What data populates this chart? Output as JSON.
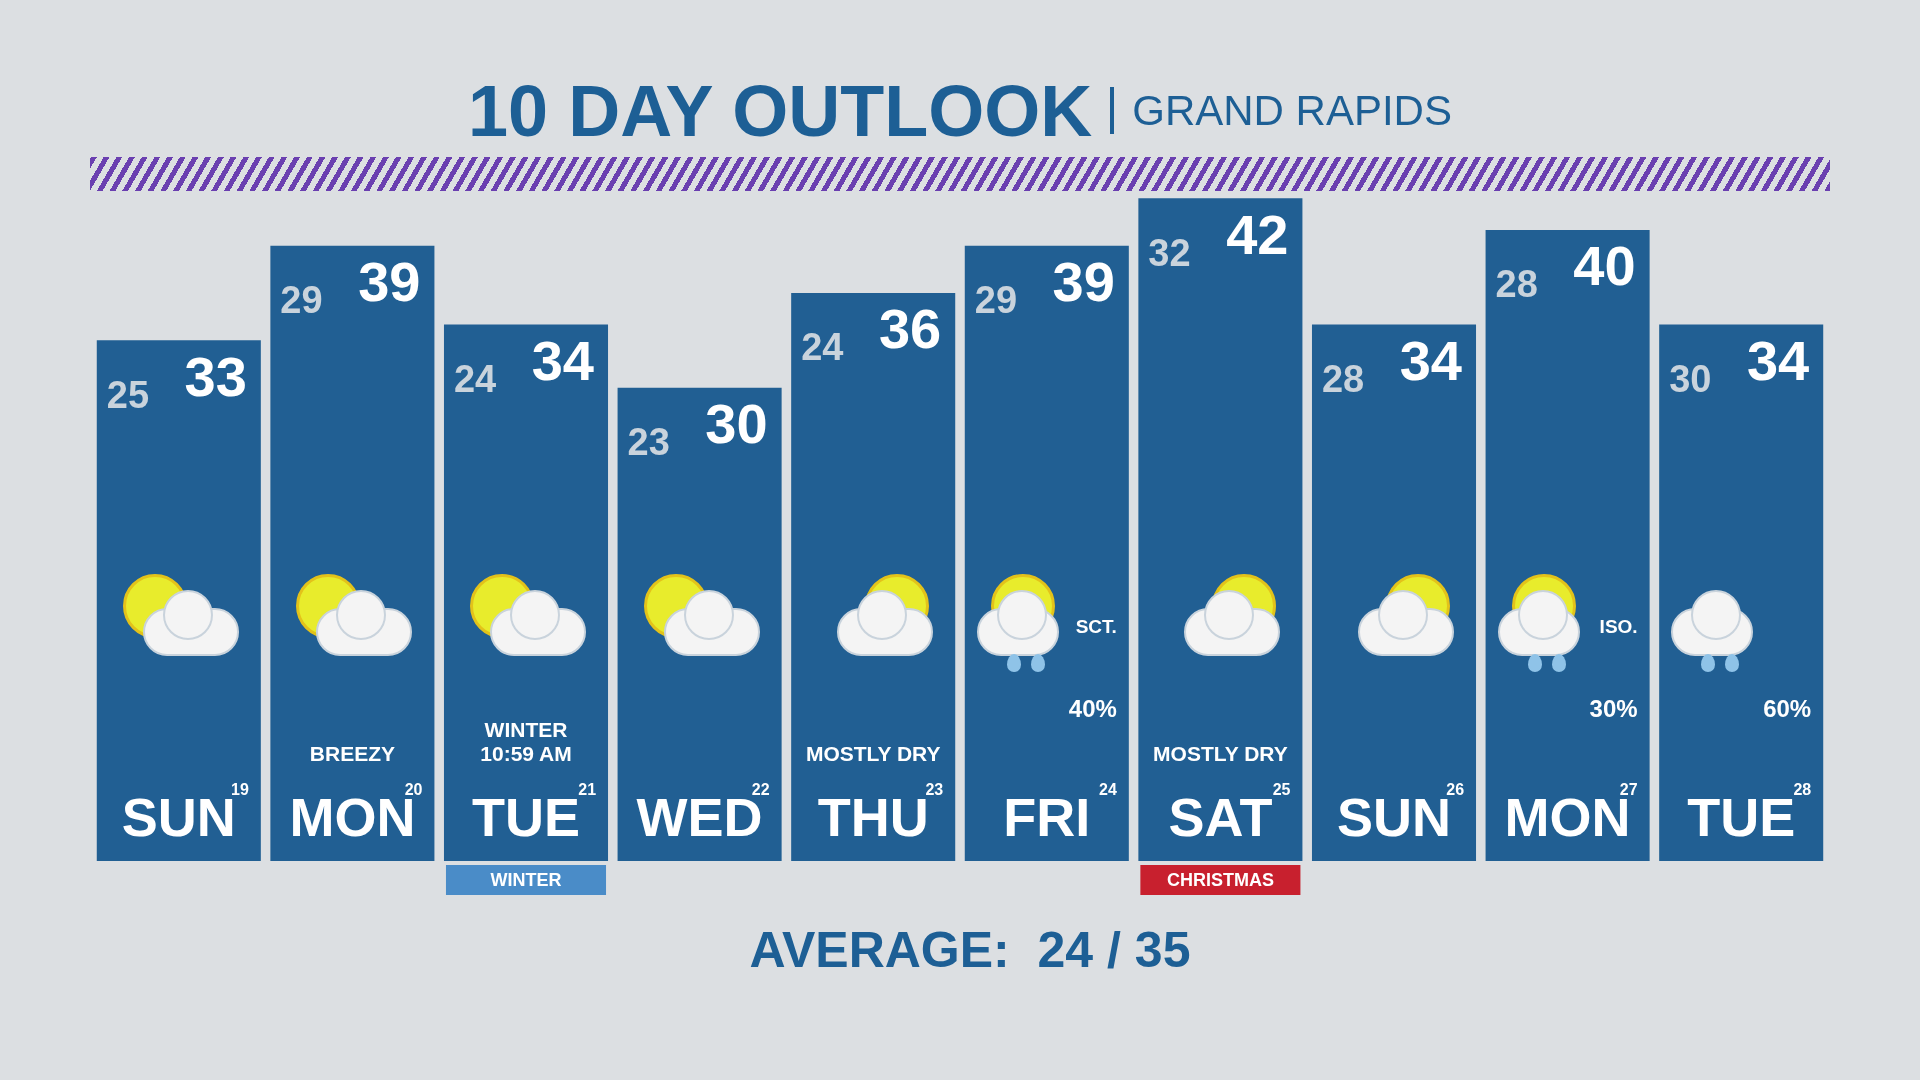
{
  "chart_data": {
    "type": "bar",
    "title": "10 DAY OUTLOOK",
    "subtitle": "GRAND RAPIDS",
    "categories": [
      "SUN19",
      "MON20",
      "TUE21",
      "WED22",
      "THU23",
      "FRI24",
      "SAT25",
      "SUN26",
      "MON27",
      "TUE28"
    ],
    "values": [
      33,
      39,
      34,
      30,
      36,
      39,
      42,
      34,
      40,
      34
    ],
    "color": "#215f93",
    "data_labels": true,
    "annotations": [
      {
        "text": "25",
        "x": "SUN19",
        "y": 33
      },
      {
        "text": "29",
        "x": "MON20",
        "y": 39
      },
      {
        "text": "24",
        "x": "TUE21",
        "y": 34
      },
      {
        "text": "23",
        "x": "WED22",
        "y": 30
      },
      {
        "text": "24",
        "x": "THU23",
        "y": 36
      },
      {
        "text": "29",
        "x": "FRI24",
        "y": 39
      },
      {
        "text": "32",
        "x": "SAT25",
        "y": 42
      },
      {
        "text": "28",
        "x": "SUN26",
        "y": 34
      },
      {
        "text": "28",
        "x": "MON27",
        "y": 40
      },
      {
        "text": "30",
        "x": "TUE28",
        "y": 34
      },
      "BREEZY",
      "WINTER\n10:59 AM",
      "MOSTLY DRY",
      "SCT.",
      "40%",
      "MOSTLY DRY",
      "ISO.",
      "30%",
      "60%",
      "WINTER",
      "CHRISTMAS",
      "AVERAGE:  24 / 35"
    ]
  }
}
